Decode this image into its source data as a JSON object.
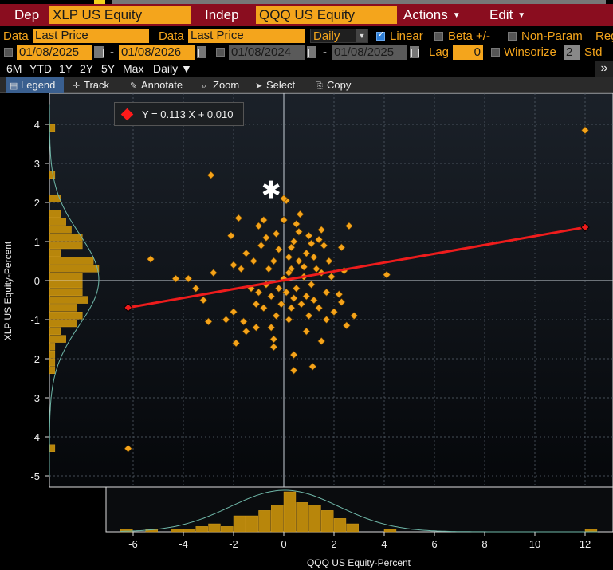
{
  "toolbar_top": {
    "dep_label": "Dep",
    "dep_value": "XLP US Equity",
    "indep_label": "Indep",
    "indep_value": "QQQ US Equity",
    "actions_label": "Actions",
    "edit_label": "Edit"
  },
  "settings": {
    "data_label_1": "Data",
    "data_value_1": "Last Price",
    "data_label_2": "Data",
    "data_value_2": "Last Price",
    "frequency": "Daily",
    "linear_label": "Linear",
    "beta_label": "Beta +/-",
    "nonparam_label": "Non-Param",
    "reg_label": "Reg"
  },
  "dates": {
    "start_1": "01/08/2025",
    "end_1": "01/08/2026",
    "start_2": "01/08/2024",
    "end_2": "01/08/2025",
    "dash": "-",
    "lag_label": "Lag",
    "lag_value": "0",
    "winsorize_label": "Winsorize",
    "winsorize_value": "2",
    "std_label": "Std D"
  },
  "periods": [
    "6M",
    "YTD",
    "1Y",
    "2Y",
    "5Y",
    "Max"
  ],
  "period_daily": "Daily",
  "more_glyph": "»",
  "tools": [
    "Legend",
    "Track",
    "Annotate",
    "Zoom",
    "Select",
    "Copy"
  ],
  "regression_label": "Y = 0.113 X + 0.010",
  "chart_data": {
    "type": "scatter",
    "xlabel": "QQQ US Equity-Percent",
    "ylabel": "XLP US Equity-Percent",
    "xlim": [
      -7,
      12.8
    ],
    "ylim": [
      -5.2,
      4.6
    ],
    "xticks": [
      -6,
      -4,
      -2,
      0,
      2,
      4,
      6,
      8,
      10,
      12
    ],
    "yticks": [
      4,
      3,
      2,
      1,
      0,
      -1,
      -2,
      -3,
      -4,
      -5
    ],
    "grid": true,
    "regression": {
      "slope": 0.113,
      "intercept": 0.01,
      "x_range": [
        -6.2,
        12.0
      ]
    },
    "current_point": {
      "x": -0.5,
      "y": 2.3
    },
    "points": [
      [
        12.0,
        3.85
      ],
      [
        -6.2,
        -4.3
      ],
      [
        -2.9,
        2.7
      ],
      [
        0.1,
        2.05
      ],
      [
        0.0,
        2.1
      ],
      [
        -1.8,
        1.6
      ],
      [
        -0.8,
        1.55
      ],
      [
        0.65,
        1.7
      ],
      [
        0.0,
        1.55
      ],
      [
        -1.0,
        1.4
      ],
      [
        0.5,
        1.45
      ],
      [
        2.6,
        1.4
      ],
      [
        1.5,
        1.3
      ],
      [
        -2.1,
        1.15
      ],
      [
        1.0,
        1.15
      ],
      [
        2.3,
        0.85
      ],
      [
        -5.3,
        0.55
      ],
      [
        -4.3,
        0.05
      ],
      [
        -3.8,
        0.05
      ],
      [
        -3.5,
        -0.2
      ],
      [
        -2.8,
        0.2
      ],
      [
        -2.0,
        0.4
      ],
      [
        -2.0,
        -0.8
      ],
      [
        -3.2,
        -0.5
      ],
      [
        -2.3,
        -1.0
      ],
      [
        -3.0,
        -1.05
      ],
      [
        -1.9,
        -1.6
      ],
      [
        -1.5,
        -1.3
      ],
      [
        -1.6,
        -1.05
      ],
      [
        -1.1,
        -1.2
      ],
      [
        -0.4,
        -1.5
      ],
      [
        -0.4,
        -1.7
      ],
      [
        0.4,
        -1.9
      ],
      [
        0.4,
        -2.3
      ],
      [
        1.15,
        -2.2
      ],
      [
        1.5,
        -1.55
      ],
      [
        2.5,
        -1.15
      ],
      [
        2.8,
        -0.9
      ],
      [
        2.2,
        -0.35
      ],
      [
        2.3,
        -0.55
      ],
      [
        4.1,
        0.15
      ],
      [
        2.4,
        0.25
      ],
      [
        -1.0,
        -0.3
      ],
      [
        -0.5,
        -0.4
      ],
      [
        0.3,
        0.3
      ],
      [
        0.6,
        0.5
      ],
      [
        0.9,
        0.7
      ],
      [
        1.2,
        0.6
      ],
      [
        -0.2,
        0.8
      ],
      [
        0.4,
        1.0
      ],
      [
        0.7,
        -0.6
      ],
      [
        1.0,
        -0.9
      ],
      [
        0.2,
        -1.0
      ],
      [
        -0.3,
        -0.9
      ],
      [
        -0.8,
        -0.7
      ],
      [
        1.5,
        0.2
      ],
      [
        1.7,
        -0.3
      ],
      [
        1.4,
        -0.7
      ],
      [
        -1.2,
        0.5
      ],
      [
        -1.5,
        0.7
      ],
      [
        -0.6,
        0.3
      ],
      [
        0.1,
        -0.3
      ],
      [
        0.8,
        0.1
      ],
      [
        1.1,
        0.95
      ],
      [
        -0.3,
        1.2
      ],
      [
        0.2,
        0.6
      ],
      [
        -0.7,
        -0.1
      ],
      [
        0.5,
        -0.2
      ],
      [
        1.3,
        0.3
      ],
      [
        0.9,
        -0.4
      ],
      [
        -1.3,
        -0.2
      ],
      [
        1.8,
        0.5
      ],
      [
        -0.1,
        -0.6
      ],
      [
        0.3,
        -0.7
      ],
      [
        1.1,
        -0.1
      ],
      [
        -0.9,
        0.9
      ],
      [
        0.6,
        1.25
      ],
      [
        2.0,
        -0.8
      ],
      [
        -1.7,
        0.3
      ],
      [
        1.6,
        0.9
      ],
      [
        -0.4,
        0.5
      ],
      [
        0.0,
        0.05
      ],
      [
        0.2,
        0.2
      ],
      [
        -0.2,
        -0.2
      ],
      [
        0.4,
        -0.45
      ],
      [
        1.9,
        0.1
      ],
      [
        -1.1,
        -0.6
      ],
      [
        0.8,
        0.35
      ],
      [
        1.2,
        -0.5
      ],
      [
        -0.5,
        -1.2
      ],
      [
        0.9,
        -1.3
      ],
      [
        1.7,
        -1.0
      ],
      [
        -0.7,
        1.1
      ],
      [
        0.3,
        0.85
      ],
      [
        1.4,
        1.05
      ]
    ]
  }
}
